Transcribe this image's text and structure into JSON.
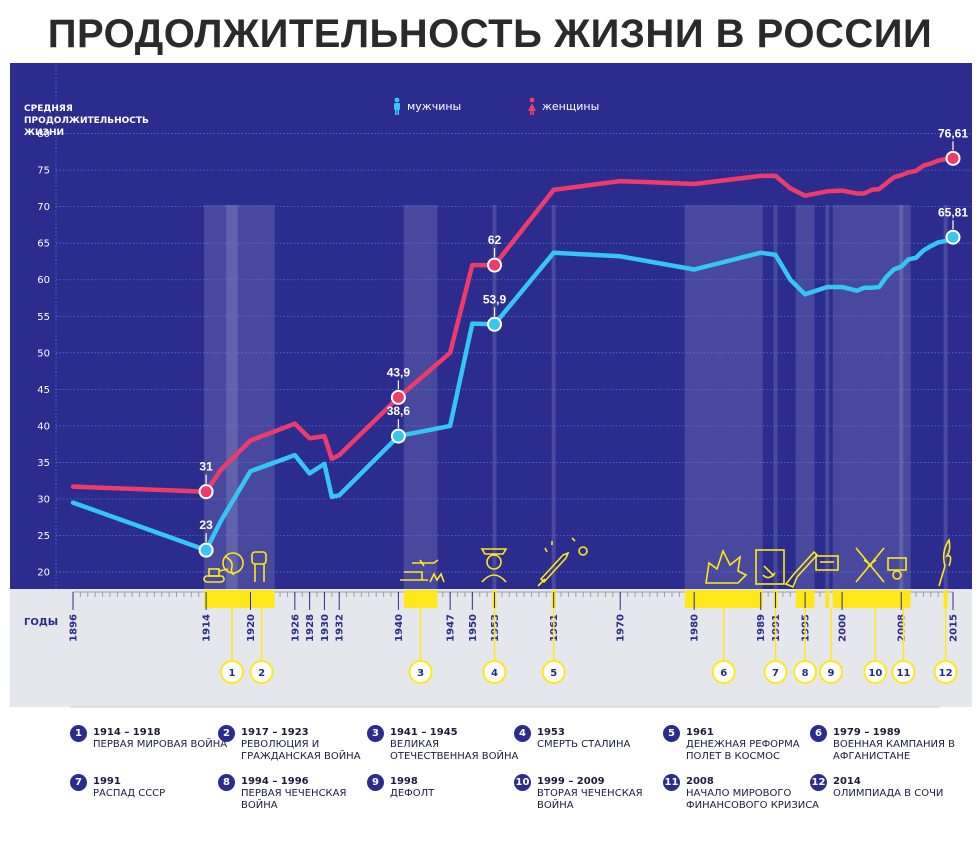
{
  "title": "ПРОДОЛЖИТЕЛЬНОСТЬ ЖИЗНИ В РОССИИ",
  "y_axis_label": "СРЕДНЯЯ ПРОДОЛЖИТЕЛЬНОСТЬ ЖИЗНИ",
  "x_axis_label": "ГОДЫ",
  "legend": {
    "men": "мужчины",
    "women": "женщины"
  },
  "colors": {
    "background": "#2b2c8e",
    "men": "#35c6f4",
    "women": "#ee3c6a",
    "accent": "#ffe81a",
    "bottom_panel": "#e6e7ec"
  },
  "chart_data": {
    "type": "line",
    "ylim": [
      17,
      85
    ],
    "yticks": [
      20,
      25,
      30,
      35,
      40,
      45,
      50,
      55,
      60,
      65,
      70,
      75,
      80
    ],
    "xlim": [
      1896,
      2015
    ],
    "xticks": [
      1896,
      1914,
      1920,
      1926,
      1928,
      1930,
      1932,
      1940,
      1947,
      1950,
      1953,
      1961,
      1970,
      1980,
      1989,
      1991,
      1995,
      2000,
      2008,
      2015
    ],
    "series": [
      {
        "name": "мужчины",
        "x": [
          1896,
          1914,
          1916,
          1920,
          1926,
          1928,
          1930,
          1931,
          1932,
          1940,
          1947,
          1950,
          1953,
          1961,
          1970,
          1980,
          1989,
          1991,
          1993,
          1995,
          1998,
          2000,
          2002,
          2003,
          2004,
          2005,
          2006,
          2007,
          2008,
          2009,
          2010,
          2011,
          2012,
          2013,
          2014,
          2015
        ],
        "y": [
          29.5,
          23,
          27,
          33.8,
          36,
          33.5,
          34.8,
          30.3,
          30.5,
          38.6,
          40,
          54,
          53.9,
          63.7,
          63.2,
          61.4,
          63.7,
          63.4,
          60,
          58,
          59,
          59,
          58.5,
          58.9,
          58.9,
          59,
          60.4,
          61.4,
          61.8,
          62.8,
          63,
          64,
          64.6,
          65.1,
          65.3,
          65.81
        ]
      },
      {
        "name": "женщины",
        "x": [
          1896,
          1914,
          1916,
          1920,
          1926,
          1928,
          1930,
          1931,
          1932,
          1940,
          1947,
          1950,
          1953,
          1961,
          1970,
          1980,
          1989,
          1991,
          1993,
          1995,
          1998,
          2000,
          2002,
          2003,
          2004,
          2005,
          2006,
          2007,
          2008,
          2009,
          2010,
          2011,
          2012,
          2013,
          2014,
          2015
        ],
        "y": [
          31.7,
          31,
          34,
          38,
          40.3,
          38.3,
          38.6,
          35.5,
          36,
          43.9,
          50,
          62,
          62,
          72.3,
          73.5,
          73.1,
          74.2,
          74.2,
          72.5,
          71.5,
          72.1,
          72.2,
          71.8,
          71.8,
          72.3,
          72.4,
          73.2,
          74,
          74.3,
          74.7,
          74.9,
          75.6,
          75.9,
          76.3,
          76.5,
          76.61
        ]
      }
    ],
    "annotations": [
      {
        "series": "женщины",
        "x": 1914,
        "y": 31,
        "label": "31"
      },
      {
        "series": "мужчины",
        "x": 1914,
        "y": 23,
        "label": "23"
      },
      {
        "series": "женщины",
        "x": 1940,
        "y": 43.9,
        "label": "43,9"
      },
      {
        "series": "мужчины",
        "x": 1940,
        "y": 38.6,
        "label": "38,6"
      },
      {
        "series": "женщины",
        "x": 1953,
        "y": 62,
        "label": "62"
      },
      {
        "series": "мужчины",
        "x": 1953,
        "y": 53.9,
        "label": "53,9"
      },
      {
        "series": "женщины",
        "x": 2015,
        "y": 76.61,
        "label": "76,61"
      },
      {
        "series": "мужчины",
        "x": 2015,
        "y": 65.81,
        "label": "65,81"
      }
    ],
    "periods": [
      {
        "from": 1914,
        "to": 1918,
        "marker": "1",
        "marker_x": 1917.5
      },
      {
        "from": 1917,
        "to": 1923,
        "marker": "2",
        "marker_x": 1921.5
      },
      {
        "from": 1941,
        "to": 1945,
        "marker": "3",
        "marker_x": 1943
      },
      {
        "from": 1953,
        "to": 1953,
        "marker": "4",
        "marker_x": 1953
      },
      {
        "from": 1961,
        "to": 1961,
        "marker": "5",
        "marker_x": 1961
      },
      {
        "from": 1979,
        "to": 1989,
        "marker": "6",
        "marker_x": 1984
      },
      {
        "from": 1991,
        "to": 1991,
        "marker": "7",
        "marker_x": 1991
      },
      {
        "from": 1994,
        "to": 1996,
        "marker": "8",
        "marker_x": 1995
      },
      {
        "from": 1998,
        "to": 1998,
        "marker": "9",
        "marker_x": 1998.5
      },
      {
        "from": 1999,
        "to": 2009,
        "marker": "10",
        "marker_x": 2004.5
      },
      {
        "from": 2008,
        "to": 2008,
        "marker": "11",
        "marker_x": 2008.3
      },
      {
        "from": 2014,
        "to": 2014,
        "marker": "12",
        "marker_x": 2014
      }
    ]
  },
  "events": [
    {
      "num": "1",
      "years": "1914 – 1918",
      "desc": "ПЕРВАЯ МИРОВАЯ ВОЙНА"
    },
    {
      "num": "2",
      "years": "1917 – 1923",
      "desc": "РЕВОЛЮЦИЯ И ГРАЖДАНСКАЯ ВОЙНА"
    },
    {
      "num": "3",
      "years": "1941 – 1945",
      "desc": "ВЕЛИКАЯ ОТЕЧЕСТВЕННАЯ ВОЙНА"
    },
    {
      "num": "4",
      "years": "1953",
      "desc": "СМЕРТЬ СТАЛИНА"
    },
    {
      "num": "5",
      "years": "1961",
      "desc": "ДЕНЕЖНАЯ РЕФОРМА ПОЛЕТ В КОСМОС"
    },
    {
      "num": "6",
      "years": "1979 – 1989",
      "desc": "ВОЕННАЯ КАМПАНИЯ В АФГАНИСТАНЕ"
    },
    {
      "num": "7",
      "years": "1991",
      "desc": "РАСПАД СССР"
    },
    {
      "num": "8",
      "years": "1994 – 1996",
      "desc": "ПЕРВАЯ ЧЕЧЕНСКАЯ ВОЙНА"
    },
    {
      "num": "9",
      "years": "1998",
      "desc": "ДЕФОЛТ"
    },
    {
      "num": "10",
      "years": "1999 – 2009",
      "desc": "ВТОРАЯ ЧЕЧЕНСКАЯ ВОЙНА"
    },
    {
      "num": "11",
      "years": "2008",
      "desc": "НАЧАЛО МИРОВОГО ФИНАНСОВОГО КРИЗИСА"
    },
    {
      "num": "12",
      "years": "2014",
      "desc": "ОЛИМПИАДА В СОЧИ"
    }
  ],
  "icons": [
    "tank-icon",
    "globe-icon",
    "fist-icon",
    "plane-icon",
    "stalin-icon",
    "rocket-icon",
    "explosion-icon",
    "hammer-sickle-icon",
    "rifle-icon",
    "currency-icon",
    "crossed-rifles-icon",
    "coin-icon",
    "olympic-torch-icon"
  ]
}
